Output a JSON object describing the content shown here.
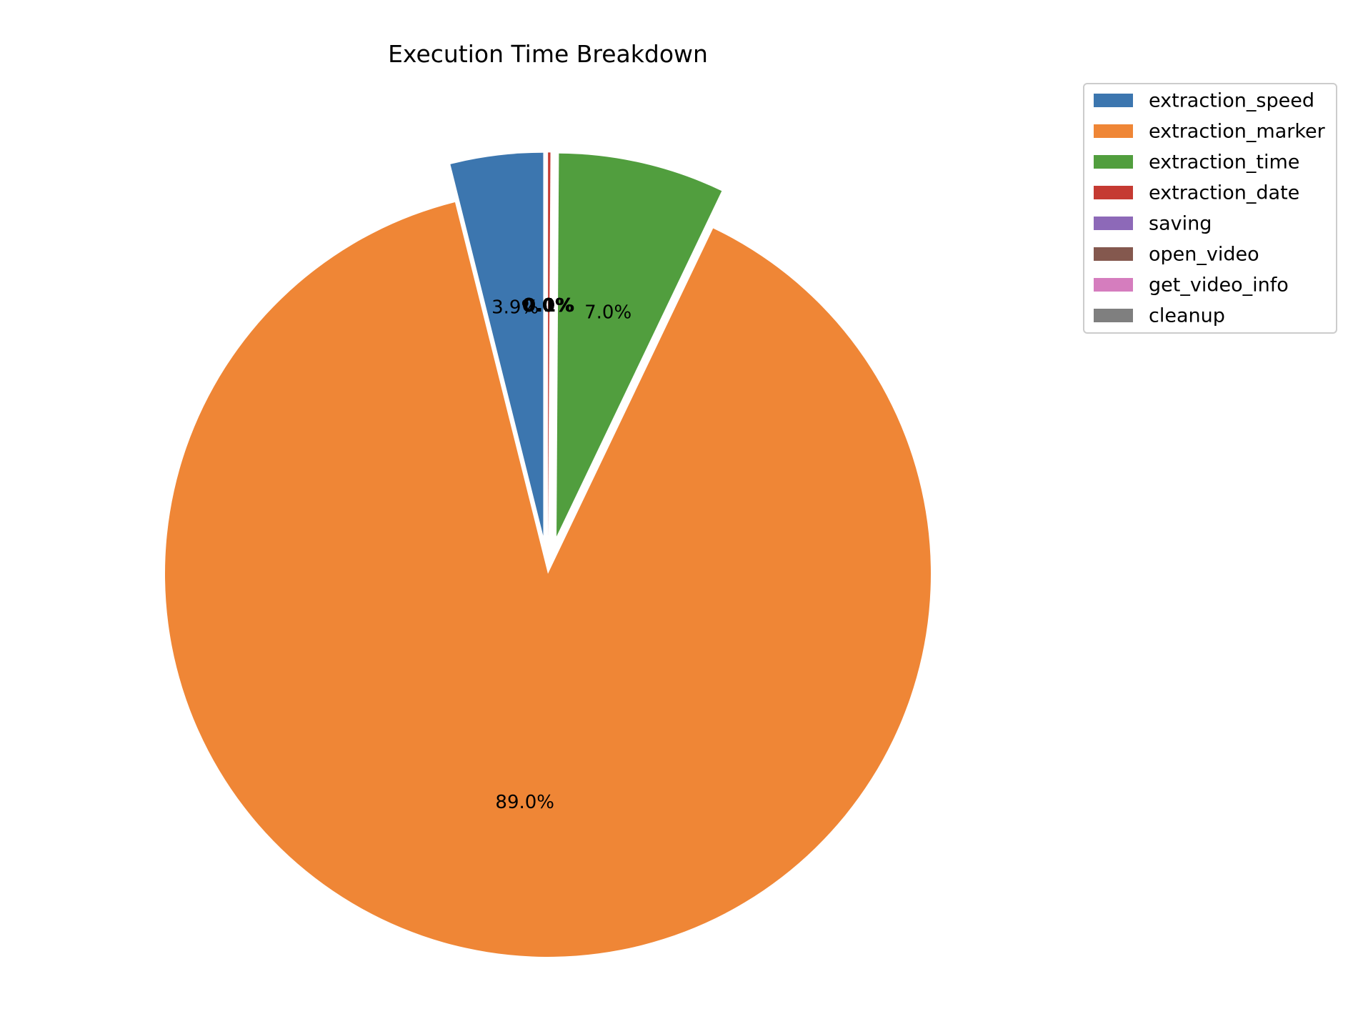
{
  "chart_data": {
    "type": "pie",
    "title": "Execution Time Breakdown",
    "slices": [
      {
        "label": "extraction_speed",
        "value": 3.9,
        "pct_label": "3.9%",
        "color": "#3c76af",
        "exploded": true
      },
      {
        "label": "extraction_marker",
        "value": 89.0,
        "pct_label": "89.0%",
        "color": "#ef8636",
        "exploded": false
      },
      {
        "label": "extraction_time",
        "value": 7.0,
        "pct_label": "7.0%",
        "color": "#519e3e",
        "exploded": true
      },
      {
        "label": "extraction_date",
        "value": 0.1,
        "pct_label": "0.1%",
        "color": "#c53a32",
        "exploded": true
      },
      {
        "label": "saving",
        "value": 0.0,
        "pct_label": "0.0%",
        "color": "#8d69b8",
        "exploded": true
      },
      {
        "label": "open_video",
        "value": 0.0,
        "pct_label": "0.0%",
        "color": "#84584e",
        "exploded": true
      },
      {
        "label": "get_video_info",
        "value": 0.0,
        "pct_label": "0.0%",
        "color": "#d57dbe",
        "exploded": true
      },
      {
        "label": "cleanup",
        "value": 0.0,
        "pct_label": "0.0%",
        "color": "#7f7f7f",
        "exploded": true
      }
    ],
    "start_angle_deg": 90,
    "direction": "counterclockwise",
    "legend": {
      "placement": "upper right, outside plot",
      "entries": [
        "extraction_speed",
        "extraction_marker",
        "extraction_time",
        "extraction_date",
        "saving",
        "open_video",
        "get_video_info",
        "cleanup"
      ]
    }
  }
}
